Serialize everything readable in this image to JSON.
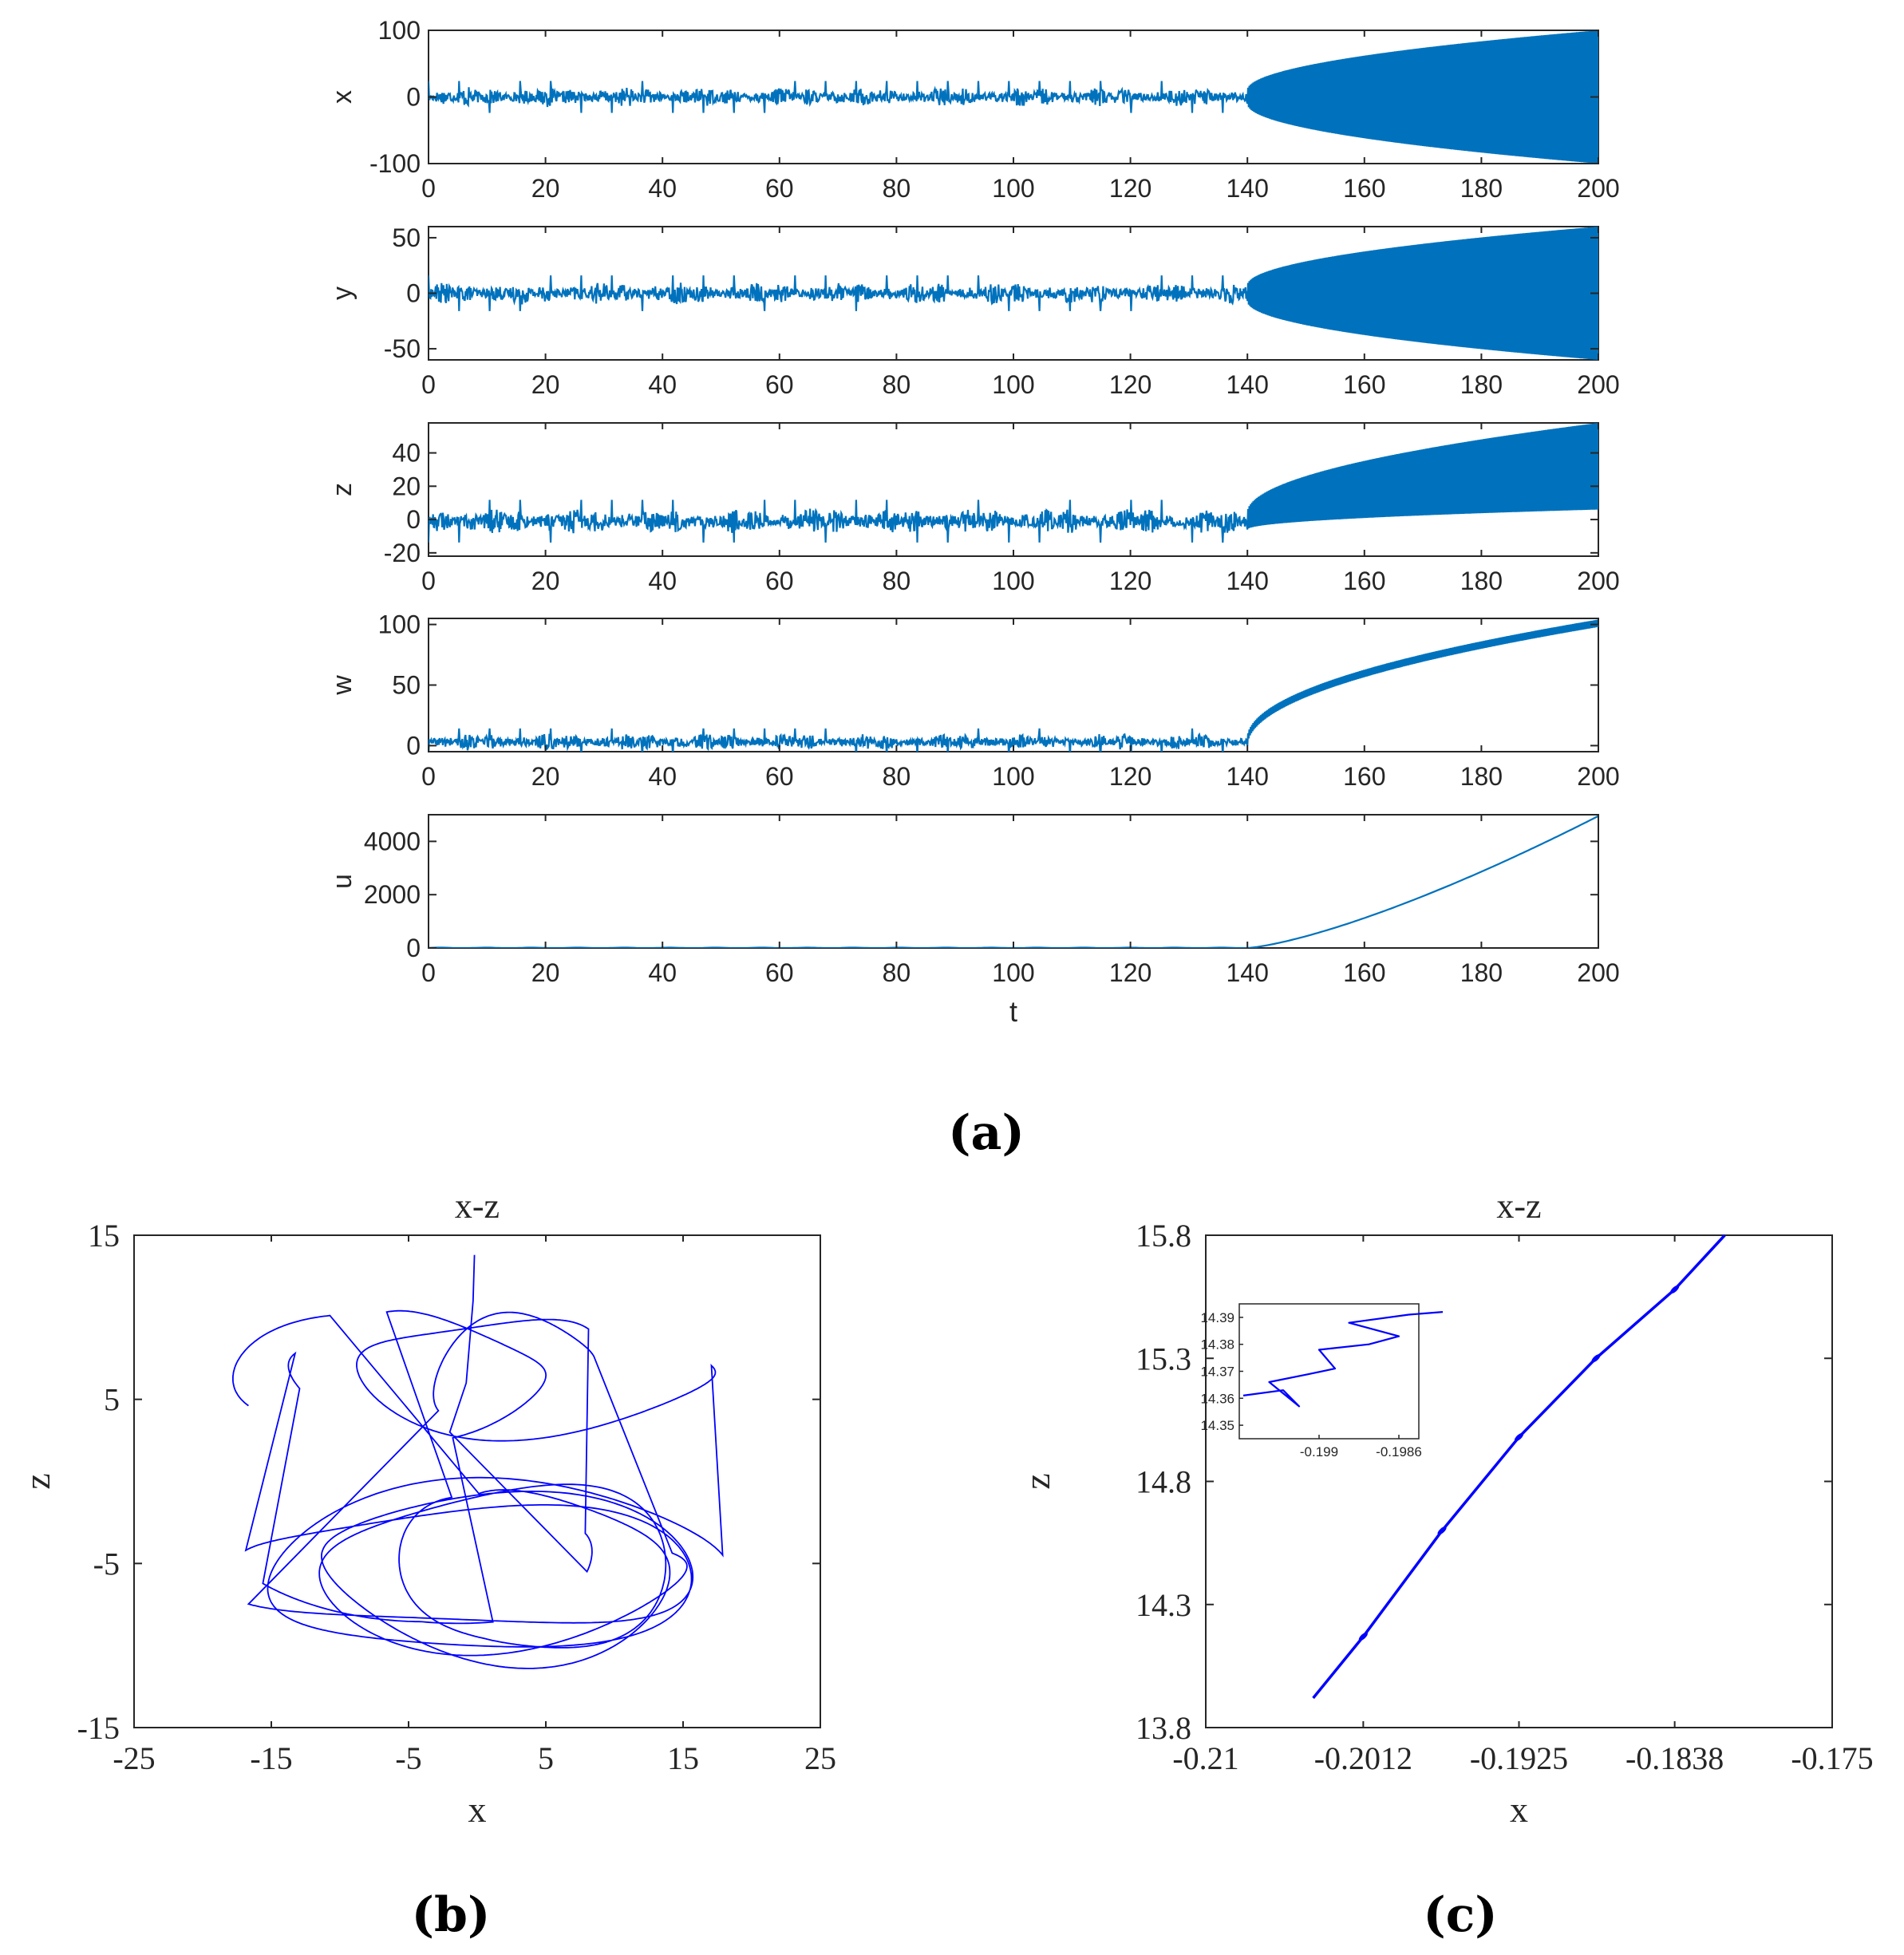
{
  "chart_data": [
    {
      "panel": "(a)",
      "type": "line",
      "xlabel": "t",
      "xlim": [
        0,
        200
      ],
      "xticks": [
        "0",
        "20",
        "40",
        "60",
        "80",
        "100",
        "120",
        "140",
        "160",
        "180",
        "200"
      ],
      "color": "#0072BD",
      "note": "Chaotic transient up to t≈140, then divergent oscillation growing as a square-root-like envelope.",
      "transition_t": 140,
      "subplots": [
        {
          "ylabel": "x",
          "ylim": [
            -100,
            100
          ],
          "yticks": [
            "100",
            "0",
            "-100"
          ],
          "chaotic_amp": 15,
          "chaotic_center": 0,
          "envelope_start": 10,
          "envelope_end": 100,
          "center_end": 0
        },
        {
          "ylabel": "y",
          "ylim": [
            -60,
            60
          ],
          "yticks": [
            "50",
            "0",
            "-50"
          ],
          "chaotic_amp": 10,
          "chaotic_center": 0,
          "envelope_start": 7,
          "envelope_end": 60,
          "center_end": 0
        },
        {
          "ylabel": "z",
          "ylim": [
            -22,
            58
          ],
          "yticks": [
            "40",
            "20",
            "0",
            "-20"
          ],
          "chaotic_amp": 8,
          "chaotic_center": -1,
          "envelope_start": 5,
          "envelope_end": 26,
          "center_end": 32
        },
        {
          "ylabel": "w",
          "ylim": [
            -5,
            105
          ],
          "yticks": [
            "100",
            "50",
            "0"
          ],
          "chaotic_amp": 7,
          "chaotic_center": 3,
          "trend_end": 101,
          "band": 3
        },
        {
          "ylabel": "u",
          "ylim": [
            0,
            5000
          ],
          "yticks": [
            "4000",
            "2000",
            "0"
          ],
          "u_end": 4950
        }
      ]
    },
    {
      "panel": "(b)",
      "type": "line",
      "title": "x-z",
      "xlabel": "x",
      "ylabel": "z",
      "xlim": [
        -25,
        25
      ],
      "ylim": [
        -15,
        15
      ],
      "xticks": [
        "-25",
        "-15",
        "-5",
        "5",
        "15",
        "25"
      ],
      "yticks": [
        "15",
        "5",
        "-5",
        "-15"
      ],
      "color": "#0000FF",
      "note": "Phase portrait: trajectory starts near (0, 13.8) and winds around two attractor lobes."
    },
    {
      "panel": "(c)",
      "type": "line",
      "title": "x-z",
      "xlabel": "x",
      "ylabel": "z",
      "xlim": [
        -0.21,
        -0.175
      ],
      "ylim": [
        13.8,
        15.8
      ],
      "xticks": [
        "-0.21",
        "-0.2012",
        "-0.1925",
        "-0.1838",
        "-0.175"
      ],
      "yticks": [
        "15.8",
        "15.3",
        "14.8",
        "14.3",
        "13.8"
      ],
      "line": [
        [
          -0.204,
          13.92
        ],
        [
          -0.2012,
          14.17
        ],
        [
          -0.1968,
          14.6
        ],
        [
          -0.1925,
          14.98
        ],
        [
          -0.1882,
          15.3
        ],
        [
          -0.1838,
          15.58
        ],
        [
          -0.181,
          15.8
        ]
      ],
      "color": "#0000FF",
      "inset": {
        "xlim": [
          -0.1994,
          -0.1985
        ],
        "ylim": [
          14.345,
          14.395
        ],
        "xticks": [
          "-0.199",
          "-0.1986"
        ],
        "yticks": [
          "14.39",
          "14.38",
          "14.37",
          "14.36",
          "14.35"
        ],
        "line": [
          [
            -0.19938,
            14.361
          ],
          [
            -0.19918,
            14.363
          ],
          [
            -0.1991,
            14.357
          ],
          [
            -0.19925,
            14.366
          ],
          [
            -0.19905,
            14.369
          ],
          [
            -0.19892,
            14.371
          ],
          [
            -0.199,
            14.378
          ],
          [
            -0.19875,
            14.38
          ],
          [
            -0.1986,
            14.383
          ],
          [
            -0.19885,
            14.388
          ],
          [
            -0.19855,
            14.391
          ],
          [
            -0.19838,
            14.392
          ]
        ]
      }
    }
  ],
  "labels": {
    "panel_a": "(a)",
    "panel_b": "(b)",
    "panel_c": "(c)"
  }
}
